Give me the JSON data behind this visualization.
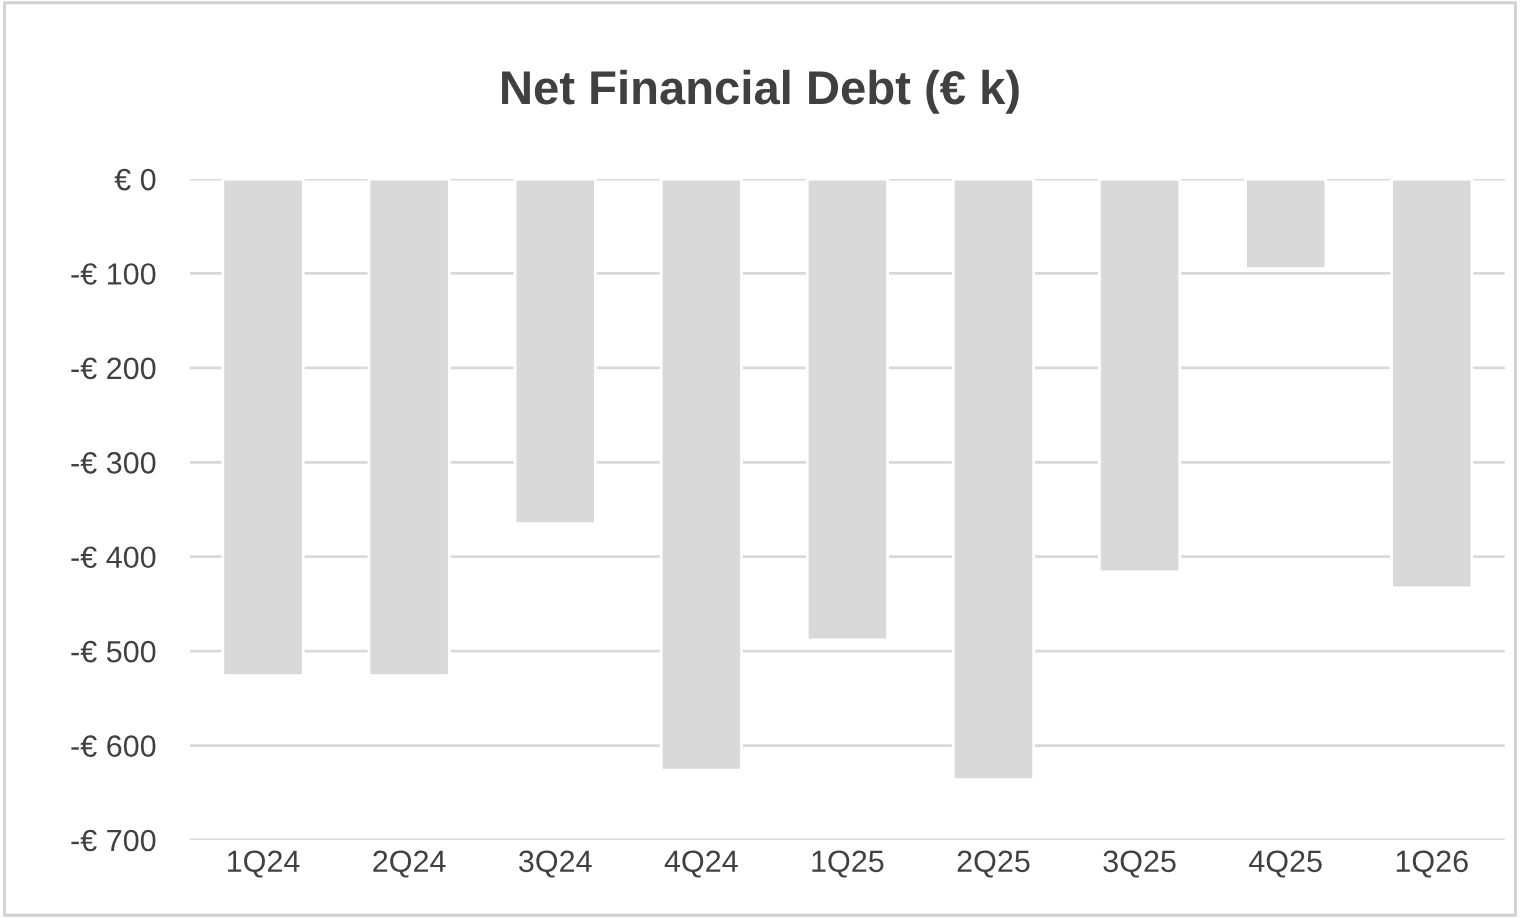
{
  "chart_data": {
    "type": "bar",
    "title": "Net Financial Debt (€ k)",
    "categories": [
      "1Q24",
      "2Q24",
      "3Q24",
      "4Q24",
      "1Q25",
      "2Q25",
      "3Q25",
      "4Q25",
      "1Q26"
    ],
    "values": [
      -526,
      -526,
      -365,
      -626,
      -488,
      -636,
      -416,
      -95,
      -433
    ],
    "color": "#d9d9d9",
    "ylim": [
      -700,
      0
    ],
    "yticks": [
      {
        "value": 0,
        "label": "€ 0"
      },
      {
        "value": -100,
        "label": "-€ 100"
      },
      {
        "value": -200,
        "label": "-€ 200"
      },
      {
        "value": -300,
        "label": "-€ 300"
      },
      {
        "value": -400,
        "label": "-€ 400"
      },
      {
        "value": -500,
        "label": "-€ 500"
      },
      {
        "value": -600,
        "label": "-€ 600"
      },
      {
        "value": -700,
        "label": "-€ 700"
      }
    ],
    "grid": "y",
    "legend": false
  }
}
